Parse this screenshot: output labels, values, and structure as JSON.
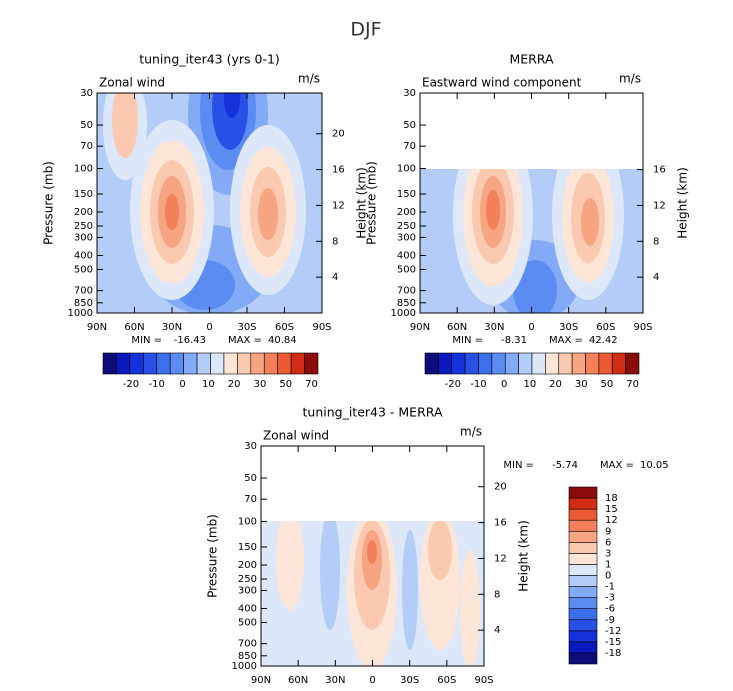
{
  "title": "DJF",
  "panels": [
    {
      "title": "tuning_iter43 (yrs 0-1)",
      "subtitle": "Zonal wind",
      "units": "m/s",
      "y_label": "Pressure (mb)",
      "y2_label": "Height (km)",
      "yticks": [
        30,
        50,
        70,
        100,
        150,
        200,
        250,
        300,
        400,
        500,
        700,
        850,
        1000
      ],
      "y2ticks": [
        4,
        8,
        12,
        16,
        20
      ],
      "xticks": [
        "90N",
        "60N",
        "30N",
        "0",
        "30S",
        "60S",
        "90S"
      ],
      "min_label": "MIN =",
      "min": -16.43,
      "max_label": "MAX =",
      "max": 40.84,
      "colorbar": [
        -20,
        -10,
        0,
        10,
        20,
        30,
        50,
        70
      ]
    },
    {
      "title": "MERRA",
      "subtitle": "Eastward wind component",
      "units": "m/s",
      "y_label": "Pressure (mb)",
      "y2_label": "Height (km)",
      "yticks": [
        30,
        50,
        70,
        100,
        150,
        200,
        250,
        300,
        400,
        500,
        700,
        850,
        1000
      ],
      "y2ticks": [
        4,
        8,
        12,
        16
      ],
      "xticks": [
        "90N",
        "60N",
        "30N",
        "0",
        "30S",
        "60S",
        "90S"
      ],
      "min_label": "MIN =",
      "min": -8.31,
      "max_label": "MAX =",
      "max": 42.42,
      "colorbar": [
        -20,
        -10,
        0,
        10,
        20,
        30,
        50,
        70
      ]
    },
    {
      "title": "tuning_iter43 - MERRA",
      "subtitle": "Zonal wind",
      "units": "m/s",
      "y_label": "Pressure (mb)",
      "y2_label": "Height (km)",
      "yticks": [
        30,
        50,
        70,
        100,
        150,
        200,
        250,
        300,
        400,
        500,
        700,
        850,
        1000
      ],
      "y2ticks": [
        4,
        8,
        12,
        16,
        20
      ],
      "xticks": [
        "90N",
        "60N",
        "30N",
        "0",
        "30S",
        "60S",
        "90S"
      ],
      "min_label": "MIN =",
      "min": -5.74,
      "max_label": "MAX =",
      "max": 10.05,
      "colorbar": [
        18,
        15,
        12,
        9,
        6,
        3,
        1,
        0,
        -1,
        -3,
        -6,
        -9,
        -12,
        -15,
        -18
      ]
    }
  ],
  "colors": [
    "#0c0c7a",
    "#0a18c0",
    "#1432dc",
    "#2850e6",
    "#3c6eec",
    "#5a8cf2",
    "#82aaf6",
    "#b4cdf8",
    "#dce8fa",
    "#fde6d8",
    "#fbc8b0",
    "#f7a482",
    "#f3805a",
    "#eb5a32",
    "#d22d14",
    "#8c0a0a"
  ]
}
